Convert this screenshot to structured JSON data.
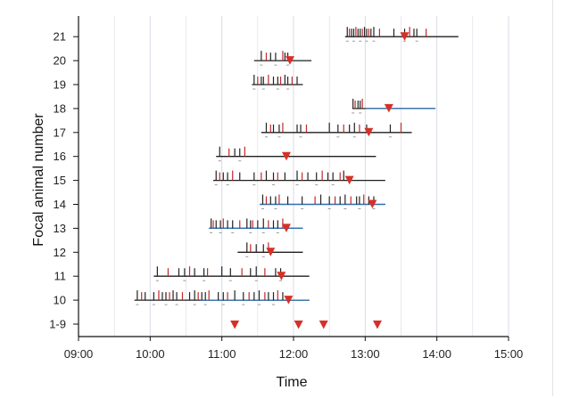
{
  "chart_data": {
    "type": "event-timeline",
    "title": "",
    "xlabel": "Time",
    "ylabel": "Focal animal number",
    "xlim": [
      9.0,
      15.0
    ],
    "x_tick_labels": [
      "09:00",
      "10:00",
      "11:00",
      "12:00",
      "13:00",
      "14:00",
      "15:00"
    ],
    "y_tick_labels": [
      "1-9",
      "10",
      "11",
      "12",
      "13",
      "14",
      "15",
      "16",
      "17",
      "18",
      "19",
      "20",
      "21"
    ],
    "colors": {
      "line": "#1f1f1f",
      "blue_line": "#2c6fb4",
      "triangle": "#d63027",
      "grid": "#d8dbe6",
      "tick_black": "#222222",
      "tick_red": "#c02a2a"
    },
    "group_markers": [
      11.18,
      12.07,
      12.42,
      13.17
    ],
    "rows": [
      {
        "animal": "10",
        "start": 9.78,
        "end": 12.22,
        "blue_from": 10.7,
        "marker": 11.93,
        "events": [
          9.82,
          9.88,
          9.93,
          10.05,
          10.12,
          10.17,
          10.22,
          10.27,
          10.32,
          10.37,
          10.45,
          10.55,
          10.62,
          10.67,
          10.72,
          10.77,
          10.82,
          10.95,
          11.02,
          11.08,
          11.18,
          11.3,
          11.38,
          11.45,
          11.52,
          11.6,
          11.65,
          11.72,
          11.78,
          11.85
        ]
      },
      {
        "animal": "11",
        "start": 10.05,
        "end": 12.22,
        "marker": 11.83,
        "events": [
          10.1,
          10.25,
          10.4,
          10.48,
          10.55,
          10.62,
          10.75,
          10.8,
          11.0,
          11.12,
          11.28,
          11.4,
          11.48,
          11.6,
          11.75,
          11.82
        ]
      },
      {
        "animal": "12",
        "start": 11.22,
        "end": 12.13,
        "marker": 11.68,
        "events": [
          11.35,
          11.4,
          11.48,
          11.58,
          11.65
        ]
      },
      {
        "animal": "13",
        "start": 10.82,
        "end": 12.13,
        "blue_from": 10.82,
        "marker": 11.9,
        "events": [
          10.85,
          10.88,
          10.92,
          10.98,
          11.02,
          11.08,
          11.15,
          11.25,
          11.35,
          11.4,
          11.43,
          11.5,
          11.58,
          11.65,
          11.72,
          11.78,
          11.85
        ]
      },
      {
        "animal": "14",
        "start": 11.53,
        "end": 13.28,
        "blue_from": 11.53,
        "marker": 13.1,
        "events": [
          11.57,
          11.62,
          11.68,
          11.75,
          11.8,
          11.92,
          12.12,
          12.3,
          12.38,
          12.5,
          12.58,
          12.65,
          12.72,
          12.8,
          12.88,
          12.92,
          12.98,
          13.05,
          13.12
        ]
      },
      {
        "animal": "15",
        "start": 10.88,
        "end": 13.28,
        "marker": 12.78,
        "events": [
          10.92,
          10.97,
          11.02,
          11.08,
          11.15,
          11.25,
          11.45,
          11.55,
          11.62,
          11.72,
          11.78,
          11.88,
          12.05,
          12.12,
          12.2,
          12.32,
          12.4,
          12.48,
          12.55,
          12.65,
          12.7
        ]
      },
      {
        "animal": "16",
        "start": 10.92,
        "end": 13.15,
        "marker": 11.9,
        "events": [
          10.97,
          11.1,
          11.18,
          11.25,
          11.32
        ]
      },
      {
        "animal": "17",
        "start": 11.55,
        "end": 13.65,
        "marker": 13.05,
        "events": [
          11.62,
          11.68,
          11.72,
          11.8,
          11.85,
          12.05,
          12.1,
          12.18,
          12.5,
          12.62,
          12.7,
          12.78,
          12.85,
          12.92,
          13.02,
          13.35,
          13.5
        ]
      },
      {
        "animal": "18",
        "start": 12.82,
        "end": 13.98,
        "blue_from": 13.0,
        "marker": 13.33,
        "events": [
          12.83,
          12.86,
          12.9,
          12.93,
          12.96
        ]
      },
      {
        "animal": "19",
        "start": 11.42,
        "end": 12.13,
        "marker": null,
        "events": [
          11.45,
          11.5,
          11.55,
          11.58,
          11.65,
          11.72,
          11.78,
          11.82,
          11.88,
          11.92,
          11.98,
          12.05
        ]
      },
      {
        "animal": "20",
        "start": 11.45,
        "end": 12.25,
        "marker": 11.95,
        "events": [
          11.55,
          11.62,
          11.68,
          11.75,
          11.85,
          11.88,
          11.92
        ]
      },
      {
        "animal": "21",
        "start": 12.72,
        "end": 14.3,
        "marker": 13.55,
        "events": [
          12.75,
          12.78,
          12.81,
          12.84,
          12.87,
          12.9,
          12.93,
          12.96,
          12.99,
          13.02,
          13.05,
          13.08,
          13.12,
          13.2,
          13.4,
          13.55,
          13.62,
          13.68,
          13.72,
          13.85
        ]
      }
    ]
  }
}
